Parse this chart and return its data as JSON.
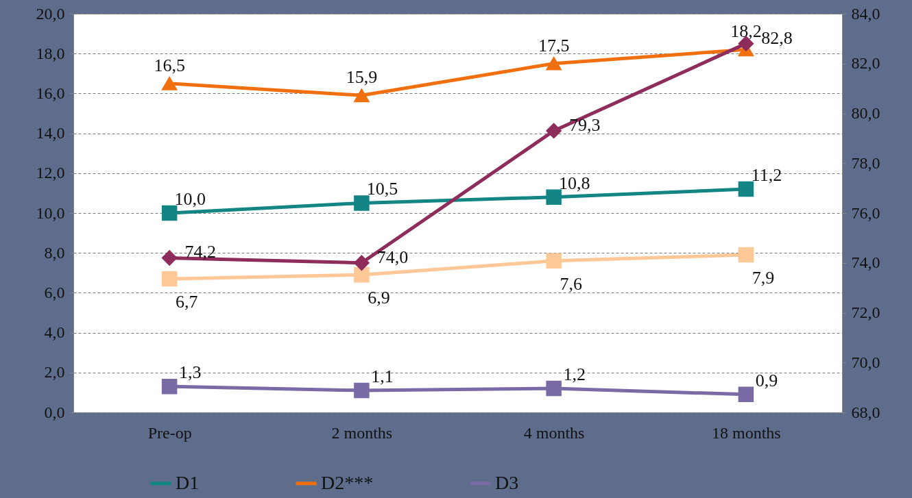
{
  "chart_data": {
    "type": "line",
    "categories": [
      "Pre-op",
      "2 months",
      "4 months",
      "18 months"
    ],
    "series": [
      {
        "name": "D1",
        "color": "#138585",
        "marker": "square",
        "values": [
          10.0,
          10.5,
          10.8,
          11.2
        ],
        "value_labels": [
          "10,0",
          "10,5",
          "10,8",
          "11,2"
        ]
      },
      {
        "name": "D2***",
        "color": "#f07010",
        "marker": "triangle",
        "values": [
          16.5,
          15.9,
          17.5,
          18.2
        ],
        "value_labels": [
          "16,5",
          "15,9",
          "17,5",
          "18,2"
        ]
      },
      {
        "name": "D3",
        "color": "#7a6aa5",
        "marker": "square",
        "values": [
          1.3,
          1.1,
          1.2,
          0.9
        ],
        "value_labels": [
          "1,3",
          "1,1",
          "1,2",
          "0,9"
        ]
      },
      {
        "color": "#ffc896",
        "marker": "square",
        "values": [
          6.7,
          6.9,
          7.6,
          7.9
        ],
        "value_labels": [
          "6,7",
          "6,9",
          "7,6",
          "7,9"
        ]
      },
      {
        "color": "#8e2c5c",
        "marker": "diamond",
        "axis": "y2",
        "values": [
          74.2,
          74.0,
          79.3,
          82.8
        ],
        "value_labels": [
          "74,2",
          "74,0",
          "79,3",
          "82,8"
        ]
      }
    ],
    "ylim": [
      0,
      20
    ],
    "yticks": [
      {
        "value": 0,
        "label": "0,0"
      },
      {
        "value": 2,
        "label": "2,0"
      },
      {
        "value": 4,
        "label": "4,0"
      },
      {
        "value": 6,
        "label": "6,0"
      },
      {
        "value": 8,
        "label": "8,0"
      },
      {
        "value": 10,
        "label": "10,0"
      },
      {
        "value": 12,
        "label": "12,0"
      },
      {
        "value": 14,
        "label": "14,0"
      },
      {
        "value": 16,
        "label": "16,0"
      },
      {
        "value": 18,
        "label": "18,0"
      },
      {
        "value": 20,
        "label": "20,0"
      }
    ],
    "y2lim": [
      68,
      84
    ],
    "y2ticks": [
      {
        "value": 68,
        "label": "68,0"
      },
      {
        "value": 70,
        "label": "70,0"
      },
      {
        "value": 72,
        "label": "72,0"
      },
      {
        "value": 74,
        "label": "74,0"
      },
      {
        "value": 76,
        "label": "76,0"
      },
      {
        "value": 78,
        "label": "78,0"
      },
      {
        "value": 80,
        "label": "80,0"
      },
      {
        "value": 82,
        "label": "82,0"
      },
      {
        "value": 84,
        "label": "84,0"
      }
    ],
    "grid": "y",
    "legend": "bottom"
  }
}
